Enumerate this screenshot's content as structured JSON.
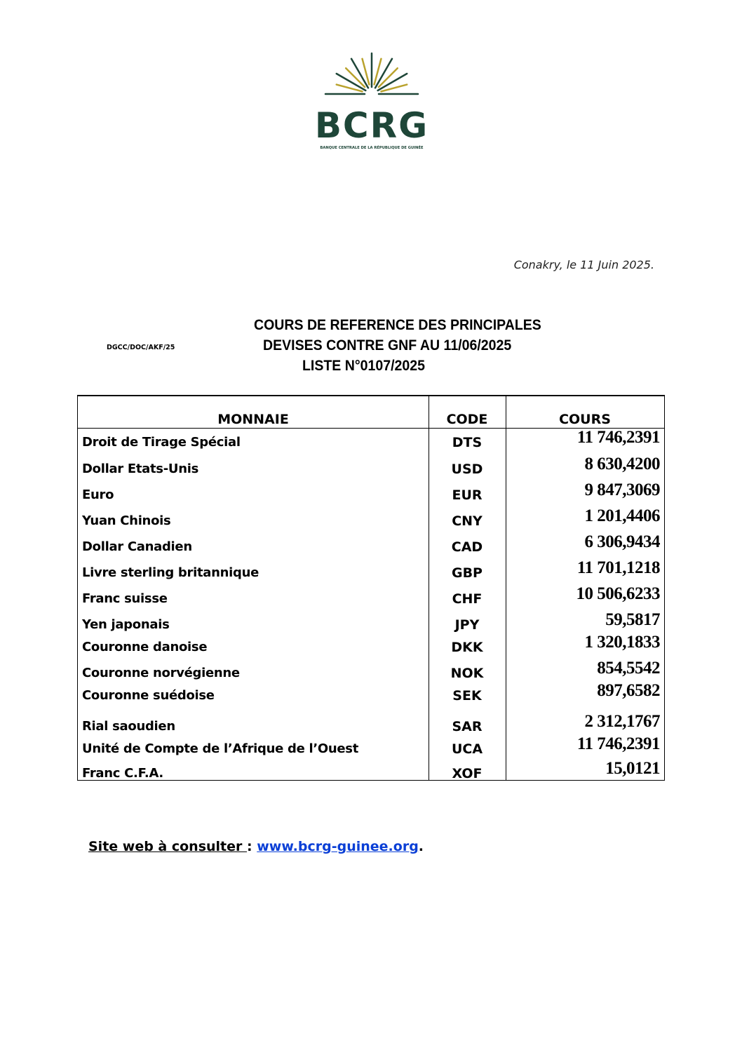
{
  "logo": {
    "name": "BCRG",
    "subtitle": "BANQUE CENTRALE DE LA RÉPUBLIQUE DE GUINÉE",
    "colors": {
      "green": "#1e4638",
      "gold": "#b9a22d"
    }
  },
  "date_line": "Conakry, le 11 Juin 2025.",
  "reference": "DGCC/DOC/AKF/25",
  "title": {
    "line1": "COURS DE REFERENCE DES PRINCIPALES",
    "line2": "DEVISES CONTRE GNF AU 11/06/2025",
    "line3": "LISTE N°0107/2025"
  },
  "table": {
    "headers": {
      "currency": "MONNAIE",
      "code": "CODE",
      "rate": "COURS"
    },
    "rows": [
      {
        "currency": "Droit de Tirage Spécial",
        "code": "DTS",
        "rate": "11 746,2391"
      },
      {
        "currency": "Dollar Etats-Unis",
        "code": "USD",
        "rate": "8 630,4200"
      },
      {
        "currency": "Euro",
        "code": "EUR",
        "rate": "9 847,3069"
      },
      {
        "currency": "Yuan Chinois",
        "code": "CNY",
        "rate": "1 201,4406"
      },
      {
        "currency": "Dollar Canadien",
        "code": "CAD",
        "rate": "6 306,9434"
      },
      {
        "currency": "Livre sterling britannique",
        "code": "GBP",
        "rate": "11 701,1218"
      },
      {
        "currency": "Franc suisse",
        "code": "CHF",
        "rate": "10 506,6233"
      },
      {
        "currency": "Yen japonais",
        "code": "JPY",
        "rate": "59,5817"
      },
      {
        "currency": "Couronne danoise",
        "code": "DKK",
        "rate": "1 320,1833"
      },
      {
        "currency": "Couronne norvégienne",
        "code": "NOK",
        "rate": "854,5542"
      },
      {
        "currency": "Couronne suédoise",
        "code": "SEK",
        "rate": "897,6582"
      },
      {
        "currency": "Rial saoudien",
        "code": "SAR",
        "rate": "2 312,1767"
      },
      {
        "currency": "Unité de Compte de l’Afrique de l’Ouest",
        "code": "UCA",
        "rate": "11 746,2391"
      },
      {
        "currency": "Franc C.F.A.",
        "code": "XOF",
        "rate": "15,0121"
      }
    ]
  },
  "footer": {
    "label": "Site web à consulter ",
    "separator": ": ",
    "link": "www.bcrg-guinee.org",
    "end": "."
  }
}
